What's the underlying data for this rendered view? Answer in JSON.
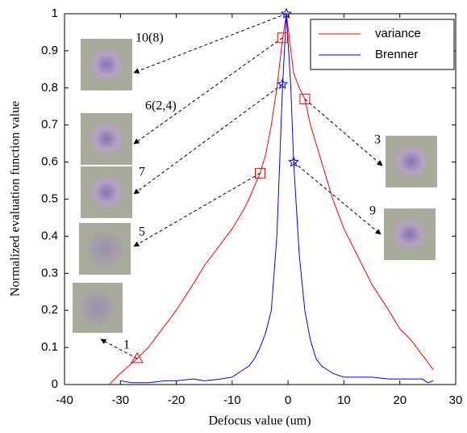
{
  "chart_data": {
    "type": "line",
    "xlabel": "Defocus value (um)",
    "ylabel": "Normalized evaluation function value",
    "xlim": [
      -40,
      30
    ],
    "xticks": [
      -40,
      -30,
      -20,
      -10,
      0,
      10,
      20,
      30
    ],
    "ylim": [
      0,
      1
    ],
    "yticks": [
      0,
      0.1,
      0.2,
      0.3,
      0.4,
      0.5,
      0.6,
      0.7,
      0.8,
      0.9,
      1
    ],
    "legend": "upper right",
    "series": [
      {
        "name": "variance",
        "color": "#ff0000",
        "x": [
          -32,
          -30,
          -27,
          -25,
          -22,
          -20,
          -17,
          -15,
          -12,
          -10,
          -8,
          -7,
          -5,
          -4,
          -3,
          -2,
          -1,
          -0.3,
          0.5,
          1,
          2,
          3,
          4,
          5,
          7,
          8,
          10,
          12,
          15,
          18,
          20,
          22,
          24,
          26
        ],
        "values": [
          0,
          0.03,
          0.07,
          0.1,
          0.16,
          0.2,
          0.27,
          0.32,
          0.38,
          0.42,
          0.47,
          0.5,
          0.57,
          0.62,
          0.7,
          0.8,
          0.93,
          1.0,
          0.9,
          0.84,
          0.8,
          0.77,
          0.7,
          0.65,
          0.55,
          0.5,
          0.42,
          0.36,
          0.27,
          0.2,
          0.15,
          0.12,
          0.08,
          0.04
        ]
      },
      {
        "name": "Brenner",
        "color": "#0000ff",
        "x": [
          -30,
          -28,
          -25,
          -22,
          -20,
          -17,
          -15,
          -12,
          -10,
          -8,
          -7,
          -6,
          -5,
          -4,
          -3,
          -2,
          -1,
          -0.3,
          0.5,
          1,
          2,
          3,
          4,
          5,
          6,
          8,
          10,
          15,
          18,
          20,
          22,
          24,
          25,
          26
        ],
        "values": [
          0.01,
          0.005,
          0.005,
          0.01,
          0.01,
          0.015,
          0.01,
          0.015,
          0.02,
          0.04,
          0.05,
          0.07,
          0.1,
          0.14,
          0.2,
          0.4,
          0.8,
          1.0,
          0.8,
          0.6,
          0.35,
          0.2,
          0.12,
          0.07,
          0.05,
          0.03,
          0.02,
          0.02,
          0.015,
          0.015,
          0.015,
          0.015,
          0.005,
          0.01
        ]
      }
    ],
    "annotations": [
      {
        "text": "10(8)",
        "x": -0.3,
        "y": 1.0,
        "marker": "star",
        "color": "#0000ff"
      },
      {
        "text": "6(2,4)",
        "x": -1,
        "y": 0.935,
        "marker": "square",
        "color": "#ff0000"
      },
      {
        "text": "7",
        "x": -1,
        "y": 0.81,
        "marker": "star",
        "color": "#0000ff"
      },
      {
        "text": "5",
        "x": -5,
        "y": 0.57,
        "marker": "square",
        "color": "#ff0000"
      },
      {
        "text": "1",
        "x": -27,
        "y": 0.07,
        "marker": "triangle",
        "color": "#ff0000"
      },
      {
        "text": "3",
        "x": 3,
        "y": 0.77,
        "marker": "square",
        "color": "#ff0000"
      },
      {
        "text": "9",
        "x": 1,
        "y": 0.6,
        "marker": "star",
        "color": "#0000ff"
      }
    ]
  }
}
